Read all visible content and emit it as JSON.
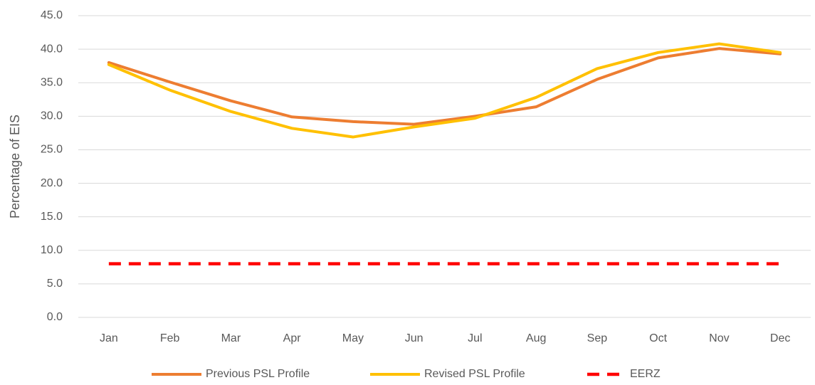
{
  "chart_data": {
    "type": "line",
    "y_label": "Percentage of EIS",
    "categories": [
      "Jan",
      "Feb",
      "Mar",
      "Apr",
      "May",
      "Jun",
      "Jul",
      "Aug",
      "Sep",
      "Oct",
      "Nov",
      "Dec"
    ],
    "series": [
      {
        "name": "Previous PSL Profile",
        "color": "#ED7D31",
        "dashed": false,
        "values": [
          38.0,
          35.1,
          32.3,
          29.9,
          29.2,
          28.8,
          30.0,
          31.4,
          35.5,
          38.7,
          40.1,
          39.3
        ]
      },
      {
        "name": "Revised PSL Profile",
        "color": "#FFC000",
        "dashed": false,
        "values": [
          37.7,
          33.9,
          30.7,
          28.2,
          26.9,
          28.4,
          29.7,
          32.8,
          37.1,
          39.5,
          40.8,
          39.5
        ]
      },
      {
        "name": "EERZ",
        "color": "#FF0000",
        "dashed": true,
        "values": [
          8.0,
          8.0,
          8.0,
          8.0,
          8.0,
          8.0,
          8.0,
          8.0,
          8.0,
          8.0,
          8.0,
          8.0
        ]
      }
    ],
    "ylim": [
      0,
      45
    ],
    "yticks": [
      {
        "value": 0,
        "label": "0.0"
      },
      {
        "value": 5,
        "label": "5.0"
      },
      {
        "value": 10,
        "label": "10.0"
      },
      {
        "value": 15,
        "label": "15.0"
      },
      {
        "value": 20,
        "label": "20.0"
      },
      {
        "value": 25,
        "label": "25.0"
      },
      {
        "value": 30,
        "label": "30.0"
      },
      {
        "value": 35,
        "label": "35.0"
      },
      {
        "value": 40,
        "label": "40.0"
      },
      {
        "value": 45,
        "label": "45.0"
      }
    ],
    "grid": true,
    "legend": "bottom"
  }
}
